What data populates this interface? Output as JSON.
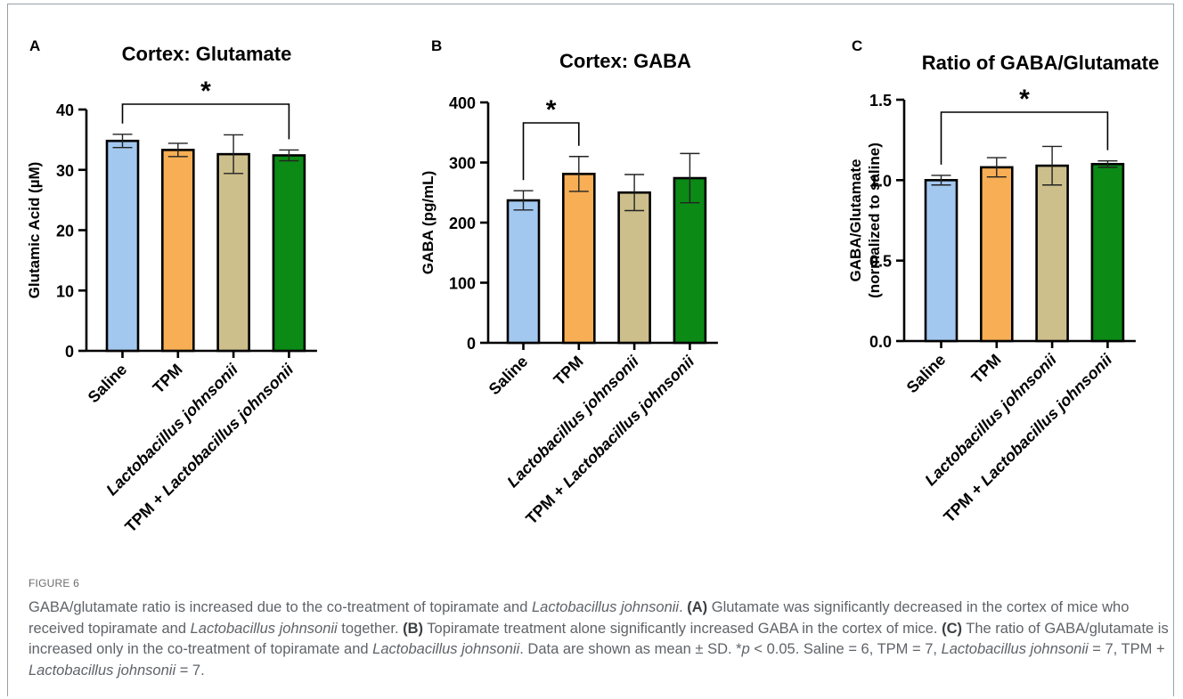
{
  "chart_data": [
    {
      "panel": "A",
      "type": "bar",
      "title": "Cortex: Glutamate",
      "ylabel": "Glutamic Acid (µM)",
      "ylim": [
        0,
        40
      ],
      "yticks": [
        0,
        10,
        20,
        30,
        40
      ],
      "categories": [
        {
          "label": "Saline",
          "italic": ""
        },
        {
          "label": "TPM",
          "italic": ""
        },
        {
          "label": "",
          "italic": "Lactobacillus johnsonii"
        },
        {
          "label": "TPM + ",
          "italic": "Lactobacillus johnsonii"
        }
      ],
      "values": [
        34.8,
        33.3,
        32.6,
        32.4
      ],
      "errors": [
        1.1,
        1.1,
        3.2,
        0.9
      ],
      "colors": [
        "#a3c8f0",
        "#f7ae55",
        "#cdbf8c",
        "#0b8a16"
      ],
      "significance": [
        {
          "from": 0,
          "to": 3,
          "label": "*"
        }
      ]
    },
    {
      "panel": "B",
      "type": "bar",
      "title": "Cortex: GABA",
      "ylabel": "GABA (pg/mL)",
      "ylim": [
        0,
        400
      ],
      "yticks": [
        0,
        100,
        200,
        300,
        400
      ],
      "categories": [
        {
          "label": "Saline",
          "italic": ""
        },
        {
          "label": "TPM",
          "italic": ""
        },
        {
          "label": "",
          "italic": "Lactobacillus johnsonii"
        },
        {
          "label": "TPM + ",
          "italic": "Lactobacillus johnsonii"
        }
      ],
      "values": [
        237,
        281,
        250,
        274
      ],
      "errors": [
        16,
        29,
        30,
        41
      ],
      "colors": [
        "#a3c8f0",
        "#f7ae55",
        "#cdbf8c",
        "#0b8a16"
      ],
      "significance": [
        {
          "from": 0,
          "to": 1,
          "label": "*"
        }
      ]
    },
    {
      "panel": "C",
      "type": "bar",
      "title": "Ratio of GABA/Glutamate",
      "ylabel": "GABA/Glutamate",
      "ylabel2": "(normalized to saline)",
      "ylim": [
        0,
        1.5
      ],
      "yticks": [
        0.0,
        0.5,
        1.0,
        1.5
      ],
      "ytick_labels": [
        "0.0",
        "0.5",
        "1.0",
        "1.5"
      ],
      "categories": [
        {
          "label": "Saline",
          "italic": ""
        },
        {
          "label": "TPM",
          "italic": ""
        },
        {
          "label": "",
          "italic": "Lactobacillus johnsonii"
        },
        {
          "label": "TPM + ",
          "italic": "Lactobacillus johnsonii"
        }
      ],
      "values": [
        1.0,
        1.08,
        1.09,
        1.1
      ],
      "errors": [
        0.03,
        0.06,
        0.12,
        0.02
      ],
      "colors": [
        "#a3c8f0",
        "#f7ae55",
        "#cdbf8c",
        "#0b8a16"
      ],
      "significance": [
        {
          "from": 0,
          "to": 3,
          "label": "*"
        }
      ]
    }
  ],
  "caption": {
    "label": "FIGURE 6",
    "parts": [
      {
        "t": "GABA/glutamate ratio is increased due to the co-treatment of topiramate and ",
        "s": ""
      },
      {
        "t": "Lactobacillus johnsonii",
        "s": "i"
      },
      {
        "t": ". ",
        "s": ""
      },
      {
        "t": "(A)",
        "s": "b"
      },
      {
        "t": " Glutamate was significantly decreased in the cortex of mice who received topiramate and ",
        "s": ""
      },
      {
        "t": "Lactobacillus johnsonii",
        "s": "i"
      },
      {
        "t": " together. ",
        "s": ""
      },
      {
        "t": "(B)",
        "s": "b"
      },
      {
        "t": " Topiramate treatment alone significantly increased GABA in the cortex of mice. ",
        "s": ""
      },
      {
        "t": "(C)",
        "s": "b"
      },
      {
        "t": " The ratio of GABA/glutamate is increased only in the co-treatment of topiramate and ",
        "s": ""
      },
      {
        "t": "Lactobacillus johnsonii",
        "s": "i"
      },
      {
        "t": ". Data are shown as mean ± SD. *",
        "s": ""
      },
      {
        "t": "p",
        "s": "i"
      },
      {
        "t": " < 0.05. Saline = 6, TPM = 7, ",
        "s": ""
      },
      {
        "t": "Lactobacillus johnsonii",
        "s": "i"
      },
      {
        "t": " = 7, TPM + ",
        "s": ""
      },
      {
        "t": "Lactobacillus johnsonii",
        "s": "i"
      },
      {
        "t": " = 7.",
        "s": ""
      }
    ]
  }
}
